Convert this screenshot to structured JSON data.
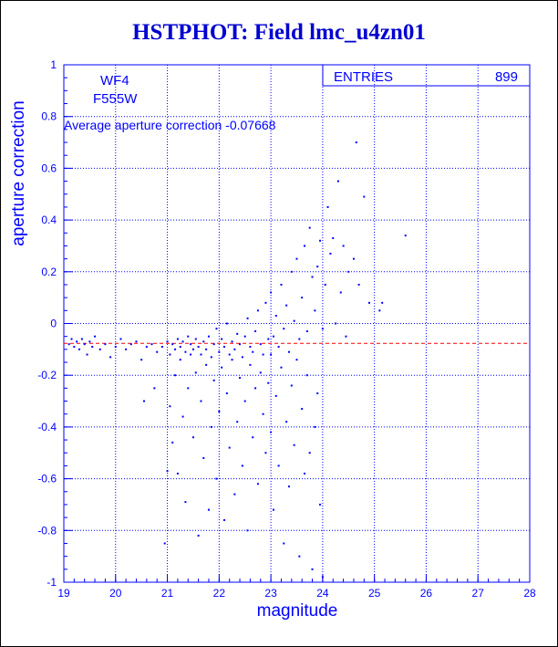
{
  "header": {
    "title": "HSTPHOT: Field lmc_u4zn01"
  },
  "chart_data": {
    "type": "scatter",
    "xlabel": "magnitude",
    "ylabel": "aperture correction",
    "xlim": [
      19,
      28
    ],
    "ylim": [
      -1,
      1
    ],
    "xticks": [
      "19",
      "20",
      "21",
      "22",
      "23",
      "24",
      "25",
      "26",
      "27",
      "28"
    ],
    "yticks": [
      "1",
      "0.8",
      "0.6",
      "0.4",
      "0.2",
      "0",
      "-0.2",
      "-0.4",
      "-0.6",
      "-0.8",
      "-1"
    ],
    "grid": true,
    "labels": {
      "chip": "WF4",
      "filter": "F555W",
      "average": "Average aperture correction -0.07668"
    },
    "stats": {
      "entries_label": "ENTRIES",
      "entries_value": "899"
    },
    "reference_line": {
      "y": -0.07668,
      "color": "#ff0000",
      "style": "dashed"
    },
    "colors": {
      "points": "#0000ff",
      "axes": "#0000ff",
      "title": "#0000d0"
    },
    "points": [
      [
        19.1,
        -0.08
      ],
      [
        19.15,
        -0.06
      ],
      [
        19.2,
        -0.09
      ],
      [
        19.25,
        -0.07
      ],
      [
        19.3,
        -0.1
      ],
      [
        19.35,
        -0.06
      ],
      [
        19.4,
        -0.08
      ],
      [
        19.45,
        -0.12
      ],
      [
        19.5,
        -0.07
      ],
      [
        19.55,
        -0.09
      ],
      [
        19.6,
        -0.05
      ],
      [
        19.7,
        -0.1
      ],
      [
        19.8,
        -0.08
      ],
      [
        19.9,
        -0.13
      ],
      [
        20.0,
        -0.09
      ],
      [
        20.1,
        -0.06
      ],
      [
        20.2,
        -0.1
      ],
      [
        20.3,
        -0.08
      ],
      [
        20.4,
        -0.07
      ],
      [
        20.5,
        -0.14
      ],
      [
        20.55,
        -0.3
      ],
      [
        20.6,
        -0.09
      ],
      [
        20.7,
        -0.08
      ],
      [
        20.75,
        -0.25
      ],
      [
        20.8,
        -0.11
      ],
      [
        20.9,
        -0.09
      ],
      [
        20.95,
        -0.85
      ],
      [
        21.0,
        -0.07
      ],
      [
        21.0,
        -0.57
      ],
      [
        21.05,
        -0.12
      ],
      [
        21.05,
        -0.32
      ],
      [
        21.1,
        -0.08
      ],
      [
        21.1,
        -0.46
      ],
      [
        21.15,
        -0.1
      ],
      [
        21.15,
        -0.2
      ],
      [
        21.2,
        -0.06
      ],
      [
        21.2,
        -0.58
      ],
      [
        21.25,
        -0.09
      ],
      [
        21.25,
        -0.14
      ],
      [
        21.3,
        -0.07
      ],
      [
        21.3,
        -0.36
      ],
      [
        21.35,
        -0.11
      ],
      [
        21.35,
        -0.69
      ],
      [
        21.4,
        -0.05
      ],
      [
        21.4,
        -0.25
      ],
      [
        21.45,
        -0.08
      ],
      [
        21.45,
        -0.12
      ],
      [
        21.5,
        -0.1
      ],
      [
        21.5,
        -0.44
      ],
      [
        21.55,
        -0.06
      ],
      [
        21.55,
        -0.19
      ],
      [
        21.6,
        -0.09
      ],
      [
        21.6,
        -0.82
      ],
      [
        21.65,
        -0.12
      ],
      [
        21.65,
        -0.3
      ],
      [
        21.7,
        -0.07
      ],
      [
        21.7,
        -0.52
      ],
      [
        21.75,
        -0.1
      ],
      [
        21.75,
        -0.16
      ],
      [
        21.8,
        -0.05
      ],
      [
        21.8,
        -0.72
      ],
      [
        21.85,
        -0.13
      ],
      [
        21.85,
        -0.4
      ],
      [
        21.9,
        -0.08
      ],
      [
        21.9,
        -0.22
      ],
      [
        21.95,
        -0.02
      ],
      [
        21.95,
        -0.6
      ],
      [
        22.0,
        -0.11
      ],
      [
        22.0,
        -0.34
      ],
      [
        22.05,
        -0.06
      ],
      [
        22.05,
        -0.17
      ],
      [
        22.1,
        -0.09
      ],
      [
        22.1,
        -0.76
      ],
      [
        22.15,
        0.0
      ],
      [
        22.15,
        -0.27
      ],
      [
        22.2,
        -0.12
      ],
      [
        22.2,
        -0.48
      ],
      [
        22.25,
        -0.07
      ],
      [
        22.25,
        -0.14
      ],
      [
        22.3,
        -0.1
      ],
      [
        22.3,
        -0.66
      ],
      [
        22.35,
        -0.04
      ],
      [
        22.35,
        -0.38
      ],
      [
        22.4,
        -0.08
      ],
      [
        22.4,
        -0.21
      ],
      [
        22.45,
        -0.13
      ],
      [
        22.45,
        -0.55
      ],
      [
        22.5,
        -0.05
      ],
      [
        22.5,
        -0.3
      ],
      [
        22.55,
        0.02
      ],
      [
        22.55,
        -0.8
      ],
      [
        22.6,
        -0.09
      ],
      [
        22.6,
        -0.16
      ],
      [
        22.65,
        -0.11
      ],
      [
        22.65,
        -0.44
      ],
      [
        22.7,
        -0.03
      ],
      [
        22.7,
        -0.25
      ],
      [
        22.75,
        0.05
      ],
      [
        22.75,
        -0.62
      ],
      [
        22.8,
        -0.08
      ],
      [
        22.8,
        -0.19
      ],
      [
        22.85,
        -0.12
      ],
      [
        22.85,
        -0.35
      ],
      [
        22.9,
        0.08
      ],
      [
        22.9,
        -0.5
      ],
      [
        22.95,
        -0.06
      ],
      [
        22.95,
        -0.23
      ],
      [
        23.0,
        0.12
      ],
      [
        23.0,
        -0.12
      ],
      [
        23.0,
        -0.42
      ],
      [
        23.05,
        -0.05
      ],
      [
        23.05,
        -0.72
      ],
      [
        23.1,
        0.03
      ],
      [
        23.1,
        -0.28
      ],
      [
        23.15,
        -0.09
      ],
      [
        23.15,
        -0.55
      ],
      [
        23.2,
        0.15
      ],
      [
        23.2,
        -0.17
      ],
      [
        23.25,
        -0.02
      ],
      [
        23.25,
        -0.85
      ],
      [
        23.3,
        0.07
      ],
      [
        23.3,
        -0.38
      ],
      [
        23.35,
        -0.11
      ],
      [
        23.35,
        -0.63
      ],
      [
        23.4,
        0.2
      ],
      [
        23.4,
        -0.24
      ],
      [
        23.45,
        0.01
      ],
      [
        23.45,
        -0.47
      ],
      [
        23.5,
        0.25
      ],
      [
        23.5,
        -0.14
      ],
      [
        23.55,
        -0.06
      ],
      [
        23.55,
        -0.9
      ],
      [
        23.6,
        0.1
      ],
      [
        23.6,
        -0.33
      ],
      [
        23.65,
        0.3
      ],
      [
        23.65,
        -0.58
      ],
      [
        23.7,
        -0.03
      ],
      [
        23.7,
        -0.2
      ],
      [
        23.75,
        0.37
      ],
      [
        23.75,
        -0.5
      ],
      [
        23.8,
        0.18
      ],
      [
        23.8,
        -0.95
      ],
      [
        23.85,
        0.05
      ],
      [
        23.85,
        -0.4
      ],
      [
        23.9,
        0.22
      ],
      [
        23.9,
        -0.27
      ],
      [
        23.95,
        0.32
      ],
      [
        23.95,
        -0.7
      ],
      [
        24.0,
        -0.02
      ],
      [
        24.0,
        -0.98
      ],
      [
        24.05,
        0.15
      ],
      [
        24.1,
        0.45
      ],
      [
        24.15,
        0.27
      ],
      [
        24.2,
        0.33
      ],
      [
        24.25,
        0.0
      ],
      [
        24.3,
        0.55
      ],
      [
        24.35,
        0.12
      ],
      [
        24.4,
        0.3
      ],
      [
        24.45,
        -0.05
      ],
      [
        24.5,
        0.2
      ],
      [
        24.6,
        0.25
      ],
      [
        24.65,
        0.7
      ],
      [
        24.7,
        0.15
      ],
      [
        24.8,
        0.49
      ],
      [
        24.9,
        0.08
      ],
      [
        25.1,
        0.05
      ],
      [
        25.15,
        0.08
      ],
      [
        25.6,
        0.34
      ]
    ]
  }
}
